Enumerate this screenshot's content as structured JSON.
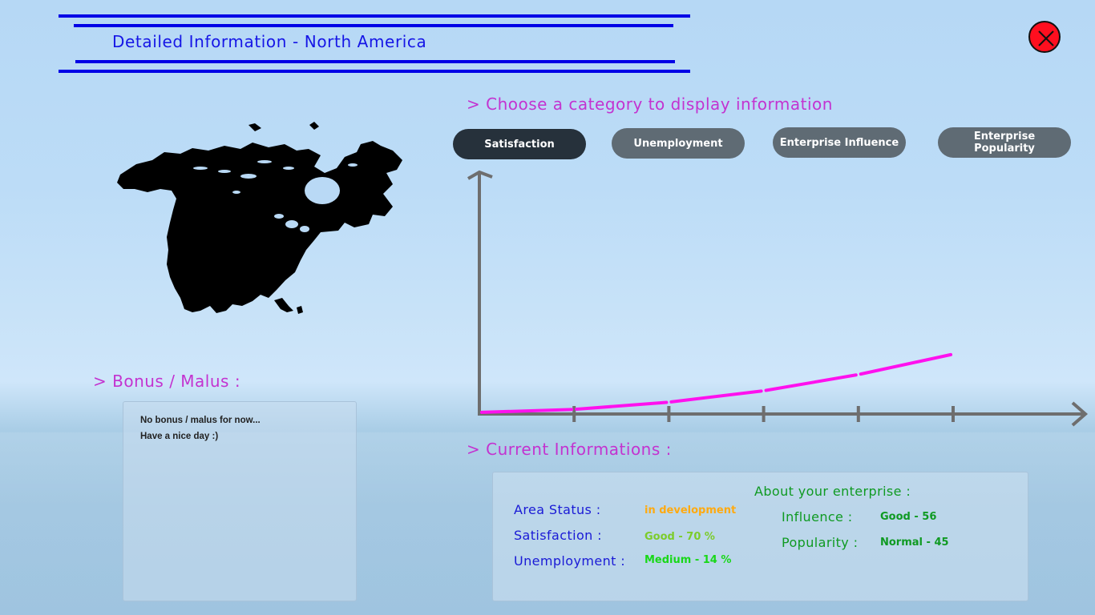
{
  "header": {
    "title": "Detailed Information - North America",
    "accent_color": "#0000e6"
  },
  "close_button": {
    "icon": "close-icon",
    "color": "#ff0f1f"
  },
  "map": {
    "icon": "north-america-map"
  },
  "category_prompt": "> Choose a category to display information",
  "categories": [
    {
      "label": "Satisfaction",
      "active": true
    },
    {
      "label": "Unemployment",
      "active": false
    },
    {
      "label": "Enterprise Influence",
      "active": false
    },
    {
      "label": "Enterprise Popularity",
      "active": false
    }
  ],
  "chart_data": {
    "type": "line",
    "title": "",
    "xlabel": "",
    "ylabel": "",
    "x": [
      0,
      1,
      2,
      3,
      4,
      5
    ],
    "series": [
      {
        "values": [
          0,
          0.5,
          1.7,
          3.6,
          6.3,
          9.7
        ],
        "color": "#ff11ee"
      }
    ],
    "ylim": [
      0,
      40
    ],
    "grid": false
  },
  "bonus": {
    "label": "> Bonus / Malus :",
    "lines": [
      "No bonus / malus for now...",
      "Have a nice day :)"
    ]
  },
  "current": {
    "label": "> Current Informations :",
    "area_status_label": "Area Status :",
    "area_status_value": "in development",
    "satisfaction_label": "Satisfaction :",
    "satisfaction_value": "Good - 70 %",
    "unemployment_label": "Unemployment :",
    "unemployment_value": "Medium - 14 %",
    "enterprise_title": "About your enterprise :",
    "influence_label": "Influence :",
    "influence_value": "Good - 56",
    "popularity_label": "Popularity :",
    "popularity_value": "Normal - 45",
    "colors": {
      "area_status": "#ffaa10",
      "satisfaction": "#7ccc2a",
      "unemployment": "#18d818",
      "enterprise": "#0f9a22"
    }
  }
}
